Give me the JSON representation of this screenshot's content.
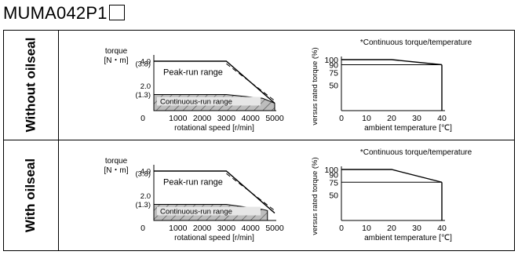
{
  "title": "MUMA042P1",
  "panels": [
    {
      "row_label": "Without oilseal",
      "speed_torque": {
        "ylabel_line1": "torque",
        "ylabel_line2": "[N・m]",
        "y_ticks": [
          {
            "label": "4.0",
            "value": 4.0
          },
          {
            "label": "(3.8)",
            "value": 3.8
          },
          {
            "label": "2.0",
            "value": 2.0
          },
          {
            "label": "(1.3)",
            "value": 1.3
          }
        ],
        "x_ticks": [
          "0",
          "1000",
          "2000",
          "3000",
          "4000",
          "5000"
        ],
        "xlabel": "rotational speed [r/min]",
        "peak_label": "Peak-run range",
        "cont_label": "Continuous-run range",
        "peak_curve": [
          [
            0,
            4.0
          ],
          [
            3000,
            4.0
          ],
          [
            5000,
            0.6
          ]
        ],
        "cont_curve": [
          [
            0,
            1.3
          ],
          [
            3000,
            1.3
          ],
          [
            4500,
            1.0
          ],
          [
            5000,
            0.6
          ]
        ],
        "dashed_line": [
          [
            3000,
            3.8
          ],
          [
            5000,
            0.8
          ]
        ]
      },
      "torque_temp": {
        "note": "*Continuous torque/temperature",
        "ylabel": "versus rated torque (%)",
        "y_ticks": [
          "100",
          "90",
          "75",
          "50"
        ],
        "x_ticks": [
          "0",
          "10",
          "20",
          "30",
          "40"
        ],
        "xlabel": "ambient temperature [℃]",
        "curve": [
          [
            0,
            100
          ],
          [
            20,
            100
          ],
          [
            40,
            90
          ]
        ],
        "ref_value": 90
      }
    },
    {
      "row_label": "With oilseal",
      "speed_torque": {
        "ylabel_line1": "torque",
        "ylabel_line2": "[N・m]",
        "y_ticks": [
          {
            "label": "4.0",
            "value": 4.0
          },
          {
            "label": "(3.8)",
            "value": 3.8
          },
          {
            "label": "2.0",
            "value": 2.0
          },
          {
            "label": "(1.3)",
            "value": 1.3
          }
        ],
        "x_ticks": [
          "0",
          "1000",
          "2000",
          "3000",
          "4000",
          "5000"
        ],
        "xlabel": "rotational speed [r/min]",
        "peak_label": "Peak-run range",
        "cont_label": "Continuous-run range",
        "peak_curve": [
          [
            0,
            4.0
          ],
          [
            3000,
            4.0
          ],
          [
            5000,
            0.6
          ]
        ],
        "cont_curve": [
          [
            0,
            1.3
          ],
          [
            3000,
            1.3
          ],
          [
            4500,
            0.9
          ],
          [
            4700,
            0.8
          ]
        ],
        "dashed_line": [
          [
            3000,
            3.8
          ],
          [
            5000,
            0.8
          ]
        ]
      },
      "torque_temp": {
        "note": "*Continuous torque/temperature",
        "ylabel": "versus rated torque (%)",
        "y_ticks": [
          "100",
          "90",
          "75",
          "50"
        ],
        "x_ticks": [
          "0",
          "10",
          "20",
          "30",
          "40"
        ],
        "xlabel": "ambient temperature [℃]",
        "curve": [
          [
            0,
            100
          ],
          [
            20,
            100
          ],
          [
            40,
            75
          ]
        ],
        "ref_value": 75
      }
    }
  ]
}
